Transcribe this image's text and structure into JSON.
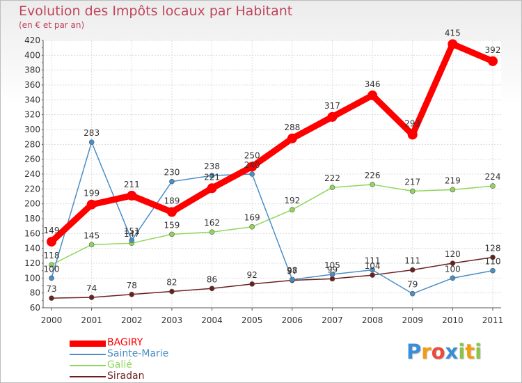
{
  "chart_data": {
    "type": "line",
    "title": "Evolution des Impôts locaux par Habitant",
    "subtitle": "(en € et par an)",
    "xlabel": "",
    "ylabel": "",
    "x": [
      "2000",
      "2001",
      "2002",
      "2003",
      "2004",
      "2005",
      "2006",
      "2007",
      "2008",
      "2009",
      "2010",
      "2011"
    ],
    "ylim": [
      60,
      420
    ],
    "yticks": [
      60,
      80,
      100,
      120,
      140,
      160,
      180,
      200,
      220,
      240,
      260,
      280,
      300,
      320,
      340,
      360,
      380,
      400,
      420
    ],
    "grid": true,
    "legend_position": "bottom-left",
    "series": [
      {
        "name": "BAGIRY",
        "color": "#ff0000",
        "values": [
          149,
          199,
          211,
          189,
          221,
          250,
          288,
          317,
          346,
          293,
          415,
          392
        ],
        "labels": [
          "149",
          "199",
          "211",
          "189",
          "221",
          "250",
          "288",
          "317",
          "346",
          "293",
          "415",
          "392"
        ]
      },
      {
        "name": "Sainte-Marie",
        "color": "#4a8ec6",
        "values": [
          100,
          283,
          151,
          230,
          238,
          240,
          98,
          105,
          111,
          79,
          100,
          110
        ],
        "labels": [
          "100",
          "283",
          "151",
          "230",
          "238",
          "240",
          "98",
          "105",
          "111",
          "79",
          "100",
          "110"
        ]
      },
      {
        "name": "Galié",
        "color": "#8fd65a",
        "values": [
          118,
          145,
          147,
          159,
          162,
          169,
          192,
          222,
          226,
          217,
          219,
          224
        ],
        "labels": [
          "118",
          "145",
          "147",
          "159",
          "162",
          "169",
          "192",
          "222",
          "226",
          "217",
          "219",
          "224"
        ]
      },
      {
        "name": "Siradan",
        "color": "#6b1f1f",
        "values": [
          73,
          74,
          78,
          82,
          86,
          92,
          97,
          99,
          104,
          111,
          120,
          128
        ],
        "labels": [
          "73",
          "74",
          "78",
          "82",
          "86",
          "92",
          "97",
          "99",
          "104",
          "111",
          "120",
          "128"
        ]
      }
    ]
  },
  "brand": {
    "letters": [
      "P",
      "r",
      "o",
      "x",
      "i",
      "t",
      "i"
    ],
    "colors": [
      "#3c8dd8",
      "#f39c12",
      "#e74c3c",
      "#3c8dd8",
      "#8bc34a",
      "#f39c12",
      "#8bc34a"
    ]
  }
}
